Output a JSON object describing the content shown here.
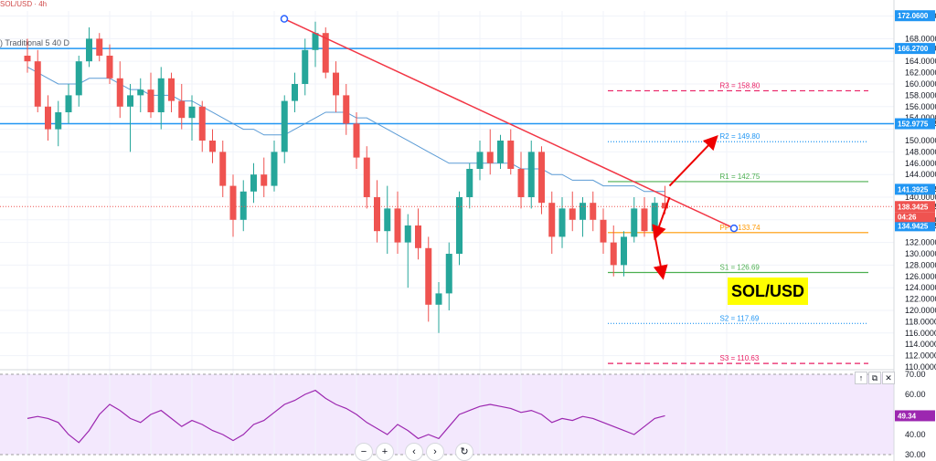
{
  "header": {
    "text": "SOL/USD · 4h"
  },
  "indicator": {
    "label": ") Traditional 5 40 D"
  },
  "symbol_badge": "SOL/USD",
  "rsi_value": "49.34",
  "controls": {
    "zoom_out": "−",
    "zoom_in": "+",
    "back": "‹",
    "forward": "›",
    "reset": "↻"
  },
  "pane_buttons": {
    "up": "↑",
    "restore": "⧉",
    "close": "✕"
  },
  "colors": {
    "up": "#26a69a",
    "down": "#ef5350",
    "ma": "#5b9bd5",
    "trend": "#f23645",
    "hline": "#2196f3",
    "rsi": "#9c27b0"
  },
  "chart_data": {
    "type": "candlestick",
    "ylim": [
      110,
      172.9
    ],
    "price_ticks": [
      "172.0000",
      "168.0000",
      "166.2700",
      "164.0000",
      "162.0000",
      "160.0000",
      "158.0000",
      "156.0000",
      "154.0000",
      "152.9775",
      "150.0000",
      "148.0000",
      "146.0000",
      "144.0000",
      "141.3925",
      "140.0000",
      "138.3425",
      "136.0000",
      "134.9425",
      "132.0000",
      "130.0000",
      "128.0000",
      "126.0000",
      "124.0000",
      "122.0000",
      "120.0000",
      "118.0000",
      "116.0000",
      "114.0000",
      "112.0000",
      "110.0000"
    ],
    "price_tags": [
      {
        "value": 172.06,
        "text": "172.0600",
        "color": "#2196f3"
      },
      {
        "value": 166.27,
        "text": "166.2700",
        "color": "#2196f3"
      },
      {
        "value": 152.9775,
        "text": "152.9775",
        "color": "#2196f3"
      },
      {
        "value": 141.3925,
        "text": "141.3925",
        "color": "#2196f3"
      },
      {
        "value": 138.3425,
        "text": "138.3425",
        "color": "#ef5350"
      },
      {
        "value": 134.9425,
        "text": "134.9425",
        "color": "#2196f3"
      }
    ],
    "countdown": "04:26",
    "horizontal_lines": [
      166.27,
      152.9775
    ],
    "pivots": [
      {
        "label": "R3 = 158.80",
        "value": 158.8,
        "color": "#e91e63",
        "style": "dashed"
      },
      {
        "label": "R2 = 149.80",
        "value": 149.8,
        "color": "#2196f3",
        "style": "dotted"
      },
      {
        "label": "R1 = 142.75",
        "value": 142.75,
        "color": "#4caf50",
        "style": "solid"
      },
      {
        "label": "PP = 133.74",
        "value": 133.74,
        "color": "#ff9800",
        "style": "solid"
      },
      {
        "label": "S1 = 126.69",
        "value": 126.69,
        "color": "#4caf50",
        "style": "solid"
      },
      {
        "label": "S2 = 117.69",
        "value": 117.69,
        "color": "#2196f3",
        "style": "dotted"
      },
      {
        "label": "S3 = 110.63",
        "value": 110.63,
        "color": "#e91e63",
        "style": "dashed"
      }
    ],
    "candles": [
      [
        165,
        168,
        162,
        164
      ],
      [
        164,
        166,
        155,
        156
      ],
      [
        156,
        158,
        150,
        152
      ],
      [
        152,
        157,
        149,
        155
      ],
      [
        155,
        160,
        153,
        158
      ],
      [
        158,
        165,
        156,
        164
      ],
      [
        164,
        170,
        163,
        168
      ],
      [
        168,
        169,
        164,
        165
      ],
      [
        165,
        167,
        160,
        161
      ],
      [
        161,
        164,
        154,
        156
      ],
      [
        156,
        160,
        148,
        158
      ],
      [
        158,
        161,
        155,
        159
      ],
      [
        159,
        162,
        154,
        155
      ],
      [
        155,
        163,
        152,
        161
      ],
      [
        161,
        162,
        155,
        157
      ],
      [
        157,
        160,
        152,
        154
      ],
      [
        154,
        158,
        150,
        156
      ],
      [
        156,
        157,
        148,
        150
      ],
      [
        150,
        152,
        146,
        148
      ],
      [
        148,
        150,
        140,
        142
      ],
      [
        142,
        144,
        133,
        136
      ],
      [
        136,
        143,
        134,
        141
      ],
      [
        141,
        146,
        139,
        144
      ],
      [
        144,
        147,
        140,
        142
      ],
      [
        142,
        150,
        141,
        148
      ],
      [
        148,
        158,
        146,
        157
      ],
      [
        157,
        162,
        155,
        160
      ],
      [
        160,
        168,
        158,
        166
      ],
      [
        166,
        171,
        163,
        169
      ],
      [
        169,
        170,
        161,
        162
      ],
      [
        162,
        164,
        155,
        158
      ],
      [
        158,
        160,
        151,
        153
      ],
      [
        153,
        155,
        145,
        147
      ],
      [
        147,
        149,
        138,
        140
      ],
      [
        140,
        143,
        132,
        134
      ],
      [
        134,
        142,
        130,
        138
      ],
      [
        138,
        141,
        130,
        132
      ],
      [
        132,
        137,
        124,
        135
      ],
      [
        135,
        138,
        129,
        131
      ],
      [
        131,
        133,
        118,
        121
      ],
      [
        121,
        125,
        116,
        123
      ],
      [
        123,
        132,
        120,
        130
      ],
      [
        130,
        141,
        128,
        140
      ],
      [
        140,
        146,
        138,
        145
      ],
      [
        145,
        150,
        143,
        148
      ],
      [
        148,
        152,
        144,
        146
      ],
      [
        146,
        151,
        145,
        150
      ],
      [
        150,
        152,
        144,
        145
      ],
      [
        145,
        148,
        138,
        140
      ],
      [
        140,
        150,
        138,
        148
      ],
      [
        148,
        149,
        137,
        139
      ],
      [
        139,
        141,
        130,
        133
      ],
      [
        133,
        140,
        131,
        138
      ],
      [
        138,
        141,
        134,
        136
      ],
      [
        136,
        140,
        133,
        139
      ],
      [
        139,
        141,
        134,
        136
      ],
      [
        136,
        138,
        130,
        132
      ],
      [
        132,
        135,
        126,
        128
      ],
      [
        128,
        134,
        126,
        133
      ],
      [
        133,
        140,
        132,
        138
      ],
      [
        138,
        140,
        133,
        134
      ],
      [
        134,
        140,
        133,
        139
      ],
      [
        139,
        142,
        137,
        138
      ]
    ],
    "ma": [
      163,
      162,
      161,
      160,
      160,
      160,
      161,
      161,
      161,
      160,
      159,
      159,
      158,
      158,
      158,
      157,
      157,
      156,
      155,
      154,
      153,
      152,
      152,
      151,
      151,
      151,
      152,
      153,
      154,
      155,
      155,
      155,
      154,
      154,
      153,
      152,
      151,
      150,
      149,
      148,
      147,
      146,
      146,
      146,
      146,
      146,
      146,
      146,
      145,
      145,
      145,
      144,
      144,
      143,
      143,
      143,
      142,
      142,
      142,
      142,
      141,
      141,
      141
    ],
    "rsi_ylim": [
      30,
      70
    ],
    "rsi_ticks": [
      "70.00",
      "60.00",
      "50.00",
      "40.00",
      "30.00"
    ],
    "rsi": [
      48,
      49,
      48,
      46,
      40,
      36,
      42,
      50,
      55,
      52,
      48,
      46,
      50,
      52,
      48,
      44,
      47,
      45,
      42,
      40,
      37,
      40,
      45,
      47,
      51,
      55,
      57,
      60,
      62,
      58,
      55,
      53,
      50,
      46,
      43,
      40,
      45,
      42,
      38,
      40,
      38,
      44,
      50,
      52,
      54,
      55,
      54,
      53,
      51,
      52,
      50,
      46,
      48,
      47,
      49,
      48,
      46,
      44,
      42,
      40,
      44,
      48,
      49.34
    ]
  }
}
